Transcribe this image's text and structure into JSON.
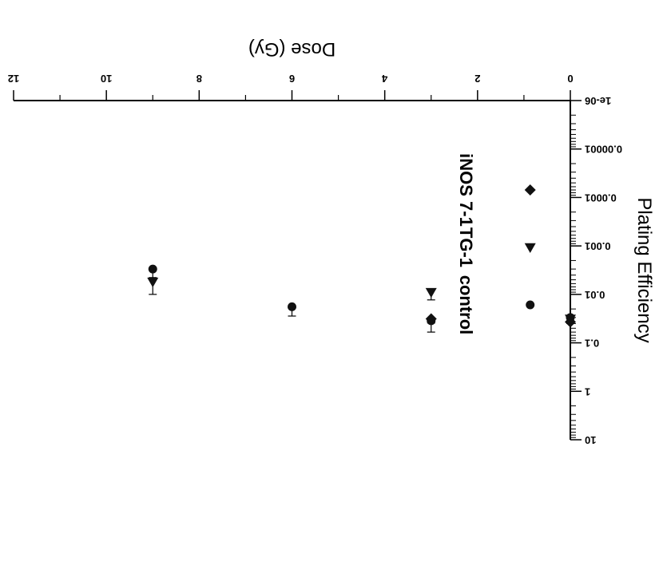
{
  "chart_data": {
    "type": "scatter",
    "xlabel": "Dose (Gy)",
    "ylabel": "Plating Efficiency",
    "xlim": [
      0,
      12
    ],
    "ylim": [
      1e-06,
      10
    ],
    "y_scale": "log",
    "x_ticks": [
      "0",
      "2",
      "4",
      "6",
      "8",
      "10",
      "12"
    ],
    "y_ticks": [
      "10",
      "1",
      "0.1",
      "0.01",
      "0.001",
      "0.0001",
      "0.00001",
      "1e-06"
    ],
    "orientation": "rotated 180°",
    "legend_position": "bottom-left",
    "series": [
      {
        "name": "control",
        "marker": "circle",
        "points": [
          {
            "x": 0,
            "y": 0.03,
            "err_low": 0.028,
            "err_high": 0.04
          },
          {
            "x": 3,
            "y": 0.035,
            "err_low": 0.031,
            "err_high": 0.039
          },
          {
            "x": 6,
            "y": 0.018,
            "err_low": 0.018,
            "err_high": 0.028
          },
          {
            "x": 9,
            "y": 0.003,
            "err_low": 0.003,
            "err_high": 0.0045
          }
        ]
      },
      {
        "name": "TG-1",
        "marker": "triangle",
        "points": [
          {
            "x": 0,
            "y": 0.032,
            "err_low": 0.03,
            "err_high": 0.04
          },
          {
            "x": 3,
            "y": 0.009,
            "err_low": 0.009,
            "err_high": 0.013
          },
          {
            "x": 9,
            "y": 0.0055,
            "err_low": 0.0055,
            "err_high": 0.01
          }
        ]
      },
      {
        "name": "iNOS 7-1",
        "marker": "diamond",
        "points": [
          {
            "x": 0,
            "y": 0.037,
            "err_low": 0.035,
            "err_high": 0.04
          },
          {
            "x": 3,
            "y": 0.032,
            "err_low": 0.032,
            "err_high": 0.06
          }
        ]
      }
    ]
  }
}
